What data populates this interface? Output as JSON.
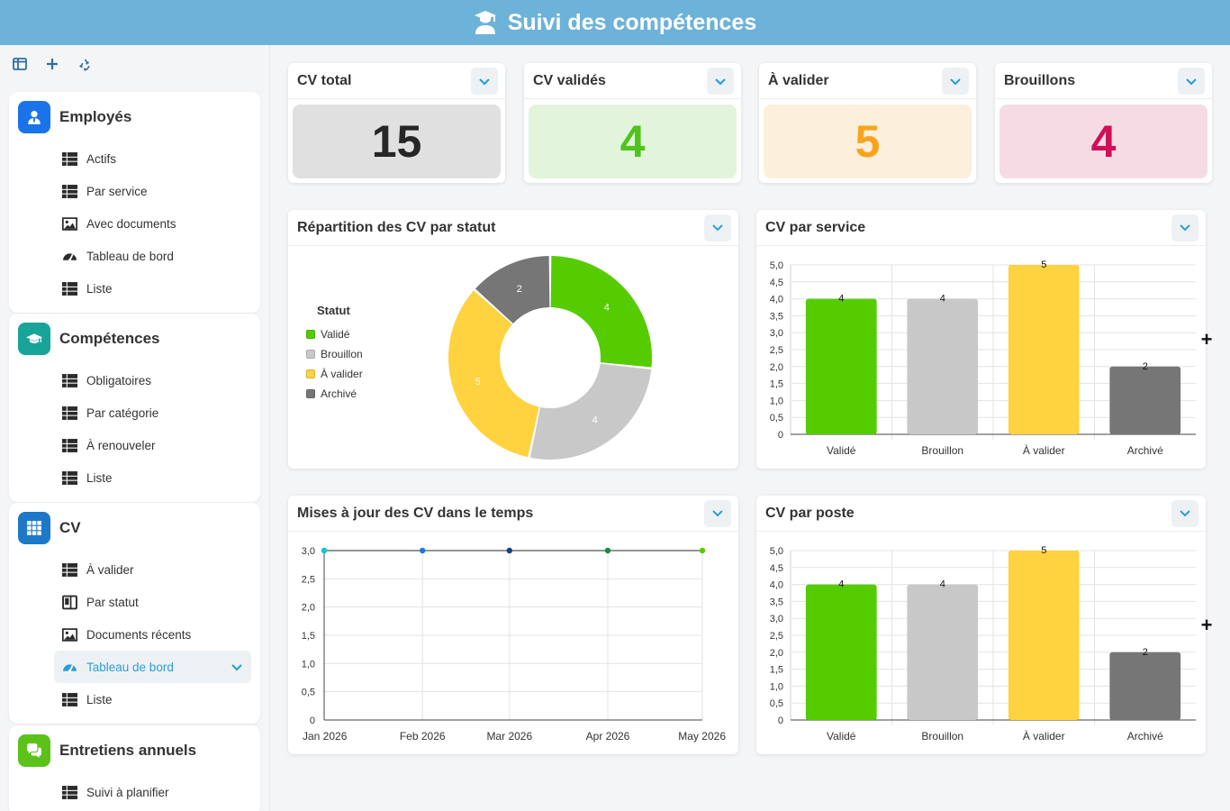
{
  "header": {
    "title": "Suivi des compétences"
  },
  "sidebar": {
    "sections": [
      {
        "title": "Employés",
        "color": "#1a73e8",
        "icon": "user-tie-icon",
        "items": [
          {
            "label": "Actifs",
            "icon": "table-icon"
          },
          {
            "label": "Par service",
            "icon": "table-icon"
          },
          {
            "label": "Avec documents",
            "icon": "image-icon"
          },
          {
            "label": "Tableau de bord",
            "icon": "gauge-icon"
          },
          {
            "label": "Liste",
            "icon": "table-icon"
          }
        ]
      },
      {
        "title": "Compétences",
        "color": "#19a49a",
        "icon": "graduation-cap-icon",
        "items": [
          {
            "label": "Obligatoires",
            "icon": "table-icon"
          },
          {
            "label": "Par catégorie",
            "icon": "table-icon"
          },
          {
            "label": "À renouveler",
            "icon": "table-icon"
          },
          {
            "label": "Liste",
            "icon": "table-icon"
          }
        ]
      },
      {
        "title": "CV",
        "color": "#1d79c8",
        "icon": "grid-icon",
        "items": [
          {
            "label": "À valider",
            "icon": "table-icon"
          },
          {
            "label": "Par statut",
            "icon": "kanban-icon"
          },
          {
            "label": "Documents récents",
            "icon": "image-icon"
          },
          {
            "label": "Tableau de bord",
            "icon": "gauge-icon",
            "active": true
          },
          {
            "label": "Liste",
            "icon": "table-icon"
          }
        ]
      },
      {
        "title": "Entretiens annuels",
        "color": "#5cc21a",
        "icon": "comments-icon",
        "items": [
          {
            "label": "Suivi à planifier",
            "icon": "table-icon"
          }
        ]
      }
    ]
  },
  "kpis": [
    {
      "title": "CV total",
      "value": "15",
      "bg": "#e0e0e0",
      "fg": "#262626"
    },
    {
      "title": "CV validés",
      "value": "4",
      "bg": "#e2f5dc",
      "fg": "#4fc41a"
    },
    {
      "title": "À valider",
      "value": "5",
      "bg": "#fcf0dc",
      "fg": "#f7a41d"
    },
    {
      "title": "Brouillons",
      "value": "4",
      "bg": "#f5dce4",
      "fg": "#cf0f58"
    }
  ],
  "widgets": {
    "donut_title": "Répartition des CV par statut",
    "service_title": "CV par service",
    "timeline_title": "Mises à jour des CV dans le temps",
    "poste_title": "CV par poste"
  },
  "legend": {
    "title": "Statut",
    "items": [
      {
        "label": "Validé",
        "color": "#55cc00"
      },
      {
        "label": "Brouillon",
        "color": "#c8c8c8"
      },
      {
        "label": "À valider",
        "color": "#ffd23f"
      },
      {
        "label": "Archivé",
        "color": "#767676"
      }
    ]
  },
  "chart_data": [
    {
      "type": "pie",
      "title": "Répartition des CV par statut",
      "legend_title": "Statut",
      "categories": [
        "Validé",
        "Brouillon",
        "À valider",
        "Archivé"
      ],
      "values": [
        4,
        4,
        5,
        2
      ],
      "colors": [
        "#55cc00",
        "#c8c8c8",
        "#ffd23f",
        "#767676"
      ]
    },
    {
      "type": "bar",
      "title": "CV par service",
      "categories": [
        "Validé",
        "Brouillon",
        "À valider",
        "Archivé"
      ],
      "values": [
        4,
        4,
        5,
        2
      ],
      "colors": [
        "#55cc00",
        "#c8c8c8",
        "#ffd23f",
        "#767676"
      ],
      "ylim": [
        0,
        5
      ],
      "yticks": [
        "0",
        "0,5",
        "1,0",
        "1,5",
        "2,0",
        "2,5",
        "3,0",
        "3,5",
        "4,0",
        "4,5",
        "5,0"
      ]
    },
    {
      "type": "line",
      "title": "Mises à jour des CV dans le temps",
      "x": [
        "Jan 2026",
        "Feb 2026",
        "Mar 2026",
        "Apr 2026",
        "May 2026"
      ],
      "values": [
        3,
        3,
        3,
        3,
        3
      ],
      "point_colors": [
        "#17c2d8",
        "#1d79e0",
        "#103f8a",
        "#178a3c",
        "#55cc00"
      ],
      "ylim": [
        0,
        3
      ],
      "yticks": [
        "0",
        "0,5",
        "1,0",
        "1,5",
        "2,0",
        "2,5",
        "3,0"
      ]
    },
    {
      "type": "bar",
      "title": "CV par poste",
      "categories": [
        "Validé",
        "Brouillon",
        "À valider",
        "Archivé"
      ],
      "values": [
        4,
        4,
        5,
        2
      ],
      "colors": [
        "#55cc00",
        "#c8c8c8",
        "#ffd23f",
        "#767676"
      ],
      "ylim": [
        0,
        5
      ],
      "yticks": [
        "0",
        "0,5",
        "1,0",
        "1,5",
        "2,0",
        "2,5",
        "3,0",
        "3,5",
        "4,0",
        "4,5",
        "5,0"
      ]
    }
  ]
}
